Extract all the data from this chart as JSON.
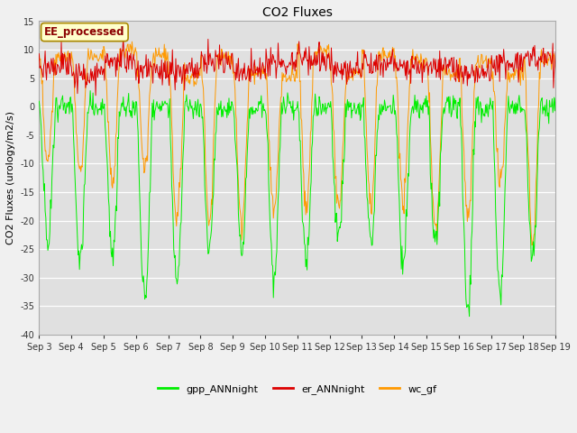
{
  "title": "CO2 Fluxes",
  "ylabel": "CO2 Fluxes (urology/m2/s)",
  "ylim": [
    -40,
    15
  ],
  "yticks": [
    -40,
    -35,
    -30,
    -25,
    -20,
    -15,
    -10,
    -5,
    0,
    5,
    10,
    15
  ],
  "fig_bg_color": "#f0f0f0",
  "plot_bg_color": "#e0e0e0",
  "grid_color": "#ffffff",
  "colors": {
    "gpp_ANNnight": "#00ee00",
    "er_ANNnight": "#dd0000",
    "wc_gf": "#ff9900"
  },
  "watermark_text": "EE_processed",
  "n_days": 16,
  "points_per_day": 48,
  "title_fontsize": 10,
  "axis_fontsize": 8,
  "tick_fontsize": 7,
  "legend_fontsize": 8
}
